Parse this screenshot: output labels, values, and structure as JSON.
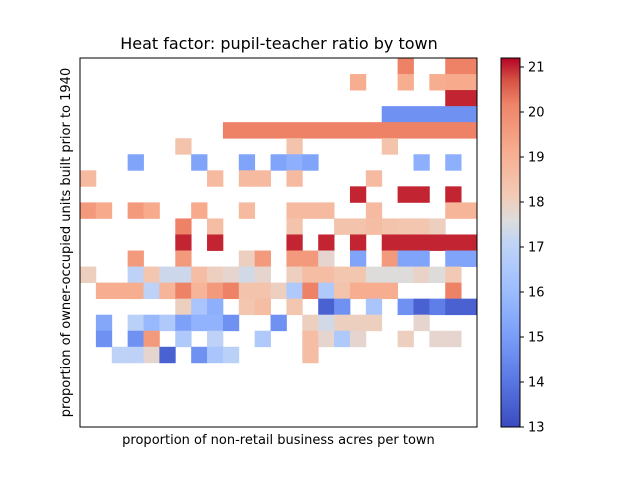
{
  "chart_data": {
    "type": "heatmap",
    "title": "Heat factor: pupil-teacher ratio by town",
    "xlabel": "proportion of non-retail business acres per town",
    "ylabel": "proportion of owner-occupied units built prior to 1940",
    "colormap": "coolwarm",
    "vmin": 13,
    "vmax": 21.2,
    "colorbar_ticks": [
      13,
      14,
      15,
      16,
      17,
      18,
      19,
      20,
      21
    ],
    "colorbar_tick_labels": [
      "13",
      "14",
      "15",
      "16",
      "17",
      "18",
      "19",
      "20",
      "21"
    ],
    "n_cols": 25,
    "n_rows": 23,
    "grid": false,
    "rows": [
      [
        null,
        null,
        null,
        null,
        null,
        null,
        null,
        null,
        null,
        null,
        null,
        null,
        null,
        null,
        null,
        null,
        null,
        null,
        null,
        null,
        20.2,
        null,
        null,
        20.2,
        20.2
      ],
      [
        null,
        null,
        null,
        null,
        null,
        null,
        null,
        null,
        null,
        null,
        null,
        null,
        null,
        null,
        null,
        null,
        null,
        19.1,
        null,
        null,
        19.1,
        null,
        19.1,
        19.2,
        19.2
      ],
      [
        null,
        null,
        null,
        null,
        null,
        null,
        null,
        null,
        null,
        null,
        null,
        null,
        null,
        null,
        null,
        null,
        null,
        null,
        null,
        null,
        null,
        null,
        null,
        21.0,
        21.0
      ],
      [
        null,
        null,
        null,
        null,
        null,
        null,
        null,
        null,
        null,
        null,
        null,
        null,
        null,
        null,
        null,
        null,
        null,
        null,
        null,
        14.7,
        14.7,
        14.7,
        14.7,
        14.7,
        14.7
      ],
      [
        null,
        null,
        null,
        null,
        null,
        null,
        null,
        null,
        null,
        20.2,
        20.2,
        20.2,
        20.2,
        20.2,
        20.2,
        20.2,
        20.2,
        20.2,
        20.2,
        20.2,
        20.2,
        20.2,
        20.2,
        20.2,
        20.2
      ],
      [
        null,
        null,
        null,
        null,
        null,
        null,
        18.4,
        null,
        null,
        null,
        null,
        null,
        null,
        18.4,
        null,
        null,
        null,
        null,
        null,
        18.4,
        null,
        null,
        null,
        null,
        null
      ],
      [
        null,
        null,
        null,
        15.2,
        null,
        null,
        null,
        15.2,
        null,
        null,
        15.2,
        null,
        15.2,
        15.6,
        15.2,
        null,
        null,
        null,
        null,
        null,
        null,
        15.6,
        null,
        15.6,
        null
      ],
      [
        18.7,
        null,
        null,
        null,
        null,
        null,
        null,
        null,
        18.7,
        null,
        18.7,
        18.7,
        null,
        18.7,
        null,
        null,
        null,
        null,
        18.7,
        null,
        null,
        null,
        null,
        null,
        null
      ],
      [
        null,
        null,
        null,
        null,
        null,
        null,
        null,
        null,
        null,
        null,
        null,
        null,
        null,
        null,
        null,
        null,
        null,
        21.0,
        null,
        null,
        21.0,
        21.0,
        null,
        21.0,
        null
      ],
      [
        19.6,
        19.2,
        null,
        19.6,
        19.2,
        null,
        null,
        19.2,
        null,
        null,
        18.7,
        null,
        null,
        18.7,
        18.7,
        18.7,
        null,
        null,
        18.7,
        null,
        null,
        null,
        null,
        18.9,
        18.9
      ],
      [
        null,
        null,
        null,
        null,
        null,
        null,
        20.2,
        null,
        18.6,
        null,
        null,
        null,
        null,
        18.4,
        null,
        null,
        18.4,
        18.4,
        18.6,
        18.4,
        18.3,
        18.3,
        18.0,
        null,
        null
      ],
      [
        null,
        null,
        null,
        null,
        null,
        null,
        21.0,
        null,
        21.0,
        null,
        null,
        null,
        null,
        21.0,
        null,
        21.0,
        null,
        21.0,
        null,
        21.0,
        21.0,
        21.0,
        21.0,
        21.0,
        21.0
      ],
      [
        null,
        null,
        null,
        19.6,
        null,
        null,
        19.6,
        null,
        null,
        null,
        18.0,
        19.6,
        null,
        19.6,
        19.6,
        17.8,
        null,
        15.2,
        null,
        19.6,
        15.2,
        15.2,
        null,
        15.2,
        15.2
      ],
      [
        18.0,
        null,
        null,
        17.0,
        18.3,
        17.3,
        17.3,
        18.6,
        18.0,
        17.8,
        17.4,
        17.8,
        null,
        18.0,
        18.6,
        18.6,
        18.3,
        18.3,
        17.6,
        17.6,
        17.6,
        17.9,
        17.6,
        18.2,
        null
      ],
      [
        null,
        19.1,
        19.1,
        19.1,
        17.0,
        18.9,
        20.2,
        18.9,
        19.6,
        20.2,
        18.4,
        18.4,
        18.0,
        16.6,
        20.2,
        16.6,
        18.4,
        19.1,
        19.1,
        19.1,
        null,
        null,
        null,
        20.2,
        null
      ],
      [
        null,
        null,
        null,
        null,
        null,
        null,
        18.0,
        16.4,
        15.6,
        null,
        18.3,
        18.6,
        null,
        18.3,
        null,
        13.5,
        14.7,
        null,
        16.4,
        null,
        14.7,
        13.5,
        14.2,
        13.5,
        13.5
      ],
      [
        null,
        15.3,
        null,
        16.9,
        15.9,
        16.6,
        15.1,
        15.7,
        15.7,
        14.7,
        null,
        null,
        14.7,
        null,
        18.0,
        17.4,
        18.0,
        18.0,
        18.0,
        null,
        null,
        17.8,
        null,
        null,
        null
      ],
      [
        null,
        14.7,
        null,
        14.7,
        19.6,
        null,
        16.6,
        null,
        17.0,
        null,
        null,
        16.6,
        null,
        null,
        18.6,
        17.8,
        16.6,
        17.8,
        null,
        null,
        18.0,
        null,
        17.8,
        17.8,
        null
      ],
      [
        null,
        null,
        17.0,
        17.0,
        17.8,
        13.5,
        null,
        14.7,
        16.4,
        16.9,
        null,
        null,
        null,
        null,
        18.6,
        null,
        null,
        null,
        null,
        null,
        null,
        null,
        null,
        null,
        null
      ],
      [
        null,
        null,
        null,
        null,
        null,
        null,
        null,
        null,
        null,
        null,
        null,
        null,
        null,
        null,
        null,
        null,
        null,
        null,
        null,
        null,
        null,
        null,
        null,
        null,
        null
      ],
      [
        null,
        null,
        null,
        null,
        null,
        null,
        null,
        null,
        null,
        null,
        null,
        null,
        null,
        null,
        null,
        null,
        null,
        null,
        null,
        null,
        null,
        null,
        null,
        null,
        null
      ],
      [
        null,
        null,
        null,
        null,
        null,
        null,
        null,
        null,
        null,
        null,
        null,
        null,
        null,
        null,
        null,
        null,
        null,
        null,
        null,
        null,
        null,
        null,
        null,
        null,
        null
      ],
      [
        null,
        null,
        null,
        null,
        null,
        null,
        null,
        null,
        null,
        null,
        null,
        null,
        null,
        null,
        null,
        null,
        null,
        null,
        null,
        null,
        null,
        null,
        null,
        null,
        null
      ]
    ]
  }
}
